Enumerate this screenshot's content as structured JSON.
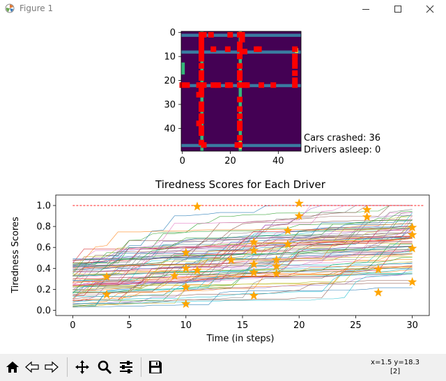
{
  "window": {
    "title": "Figure 1",
    "controls": [
      "minimize-icon",
      "maximize-icon",
      "close-icon"
    ]
  },
  "grid_plot": {
    "x_ticks": [
      "0",
      "20",
      "40"
    ],
    "y_ticks": [
      "0",
      "10",
      "20",
      "30",
      "40"
    ],
    "colormap": "viridis",
    "colors": {
      "background": "#440154",
      "road": "#3a7ba0",
      "road_green": "#35b779",
      "edge_yellow": "#fde725",
      "car": "#ff0000"
    },
    "horizontal_roads_rows": [
      1,
      8,
      22,
      47
    ],
    "vertical_roads_cols": [
      8,
      24
    ],
    "cars": [
      [
        8,
        1
      ],
      [
        9,
        1
      ],
      [
        12,
        1
      ],
      [
        20,
        1
      ],
      [
        24,
        1
      ],
      [
        25,
        1
      ],
      [
        8,
        3
      ],
      [
        25,
        3
      ],
      [
        8,
        5
      ],
      [
        24,
        5
      ],
      [
        8,
        7
      ],
      [
        13,
        7
      ],
      [
        19,
        7
      ],
      [
        24,
        7
      ],
      [
        25,
        8
      ],
      [
        26,
        8
      ],
      [
        31,
        7
      ],
      [
        32,
        7
      ],
      [
        47,
        7
      ],
      [
        8,
        9
      ],
      [
        24,
        10
      ],
      [
        47,
        10
      ],
      [
        8,
        11
      ],
      [
        47,
        12
      ],
      [
        47,
        14
      ],
      [
        8,
        14
      ],
      [
        24,
        14
      ],
      [
        24,
        17
      ],
      [
        8,
        17
      ],
      [
        47,
        17
      ],
      [
        8,
        19
      ],
      [
        24,
        19
      ],
      [
        47,
        20
      ],
      [
        0,
        22
      ],
      [
        2,
        22
      ],
      [
        7,
        22
      ],
      [
        8,
        22
      ],
      [
        9,
        22
      ],
      [
        13,
        22
      ],
      [
        15,
        22
      ],
      [
        19,
        22
      ],
      [
        20,
        22
      ],
      [
        24,
        22
      ],
      [
        26,
        22
      ],
      [
        27,
        22
      ],
      [
        33,
        22
      ],
      [
        38,
        22
      ],
      [
        47,
        22
      ],
      [
        8,
        24
      ],
      [
        7,
        26
      ],
      [
        8,
        26
      ],
      [
        24,
        28
      ],
      [
        8,
        30
      ],
      [
        8,
        32
      ],
      [
        24,
        32
      ],
      [
        8,
        35
      ],
      [
        24,
        35
      ],
      [
        8,
        37
      ],
      [
        7,
        38
      ],
      [
        24,
        38
      ],
      [
        8,
        40
      ],
      [
        24,
        40
      ],
      [
        8,
        42
      ],
      [
        24,
        44
      ],
      [
        8,
        46
      ],
      [
        9,
        47
      ],
      [
        23,
        47
      ],
      [
        24,
        47
      ]
    ],
    "annotations": [
      "Cars crashed: 36",
      "Drivers asleep: 0"
    ]
  },
  "chart_data": {
    "type": "line",
    "title": "Tiredness Scores for Each Driver",
    "xlabel": "Time (in steps)",
    "ylabel": "Tiredness Scores",
    "x_ticks": [
      0,
      5,
      10,
      15,
      20,
      25,
      30
    ],
    "y_ticks": [
      "0.0",
      "0.2",
      "0.4",
      "0.6",
      "0.8",
      "1.0"
    ],
    "xlim": [
      -1.5,
      31.5
    ],
    "ylim": [
      -0.05,
      1.1
    ],
    "threshold": {
      "y": 1.0,
      "x": [
        0,
        31
      ],
      "color": "#ff0000",
      "style": "dashed"
    },
    "num_drivers": 90,
    "steps": 30,
    "star_color": "#ffa500",
    "stars": [
      [
        3,
        0.32
      ],
      [
        3,
        0.15
      ],
      [
        9,
        0.33
      ],
      [
        10,
        0.55
      ],
      [
        10,
        0.4
      ],
      [
        10,
        0.22
      ],
      [
        10,
        0.06
      ],
      [
        11,
        0.99
      ],
      [
        11,
        0.38
      ],
      [
        14,
        0.48
      ],
      [
        16,
        0.65
      ],
      [
        16,
        0.57
      ],
      [
        16,
        0.44
      ],
      [
        16,
        0.36
      ],
      [
        16,
        0.14
      ],
      [
        18,
        0.48
      ],
      [
        18,
        0.42
      ],
      [
        18,
        0.35
      ],
      [
        19,
        0.76
      ],
      [
        19,
        0.63
      ],
      [
        20,
        1.02
      ],
      [
        20,
        0.9
      ],
      [
        26,
        0.96
      ],
      [
        26,
        0.89
      ],
      [
        27,
        0.39
      ],
      [
        27,
        0.17
      ],
      [
        30,
        0.79
      ],
      [
        30,
        0.72
      ],
      [
        30,
        0.59
      ],
      [
        30,
        0.27
      ]
    ]
  },
  "toolbar": {
    "buttons": [
      "home-icon",
      "back-icon",
      "forward-icon",
      "pan-icon",
      "zoom-icon",
      "configure-icon",
      "save-icon"
    ],
    "coords_line1": "x=1.5 y=18.3",
    "coords_line2": "[2]"
  }
}
